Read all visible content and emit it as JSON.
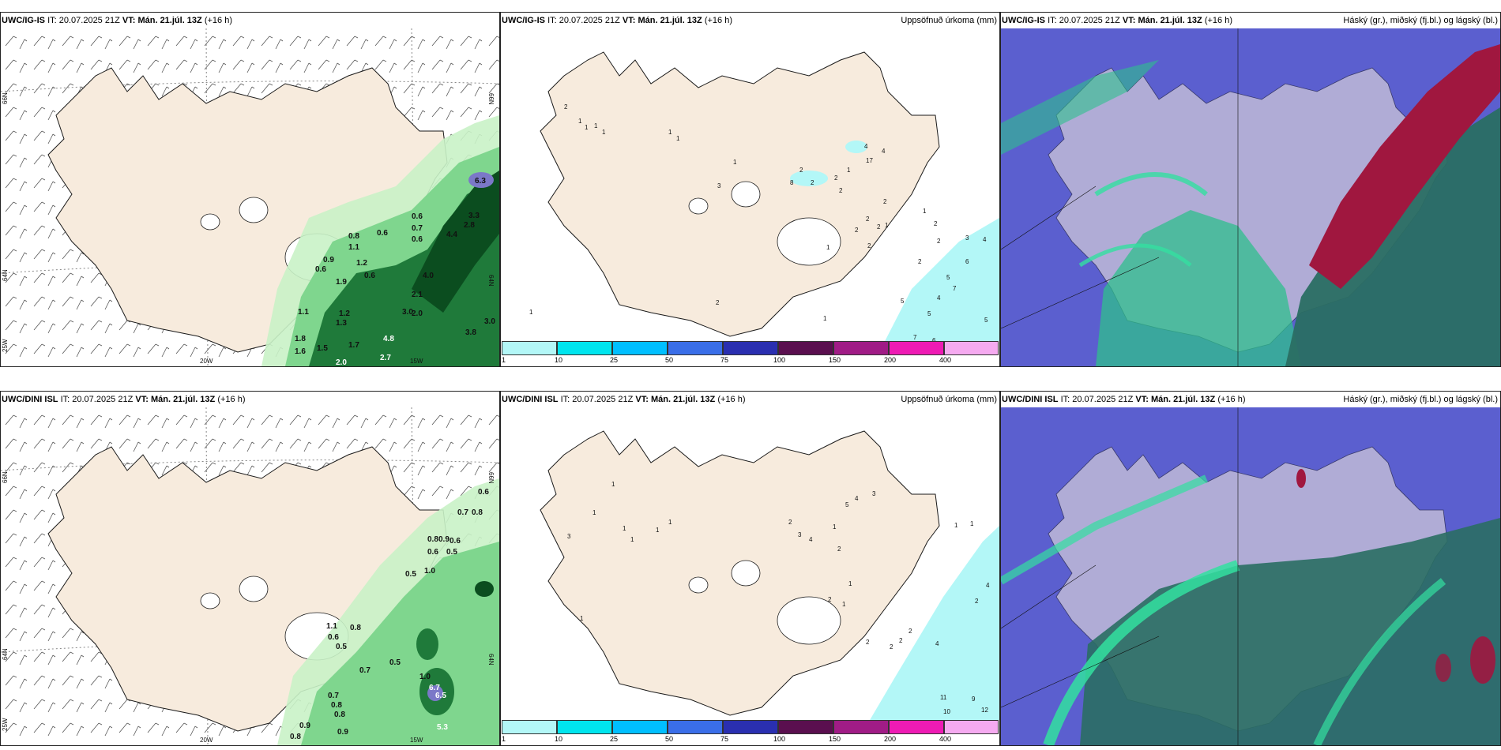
{
  "panels": [
    {
      "model": "UWC/IG-IS",
      "it_label": "IT:",
      "it_time": "20.07.2025 21Z",
      "vt_label": "VT:",
      "vt_time": "Mán. 21.júl. 13Z",
      "lead": "(+16 h)",
      "right_title": ""
    },
    {
      "model": "UWC/IG-IS",
      "it_label": "IT:",
      "it_time": "20.07.2025 21Z",
      "vt_label": "VT:",
      "vt_time": "Mán. 21.júl. 13Z",
      "lead": "(+16 h)",
      "right_title": "Uppsöfnuð úrkoma (mm)"
    },
    {
      "model": "UWC/IG-IS",
      "it_label": "IT:",
      "it_time": "20.07.2025 21Z",
      "vt_label": "VT:",
      "vt_time": "Mán. 21.júl. 13Z",
      "lead": "(+16 h)",
      "right_title": "Háský (gr.), miðský (fj.bl.) og lágský (bl.)"
    },
    {
      "model": "UWC/DINI ISL",
      "it_label": "IT:",
      "it_time": "20.07.2025 21Z",
      "vt_label": "VT:",
      "vt_time": "Mán. 21.júl. 13Z",
      "lead": "(+16 h)",
      "right_title": ""
    },
    {
      "model": "UWC/DINI ISL",
      "it_label": "IT:",
      "it_time": "20.07.2025 21Z",
      "vt_label": "VT:",
      "vt_time": "Mán. 21.júl. 13Z",
      "lead": "(+16 h)",
      "right_title": "Uppsöfnuð úrkoma (mm)"
    },
    {
      "model": "UWC/DINI ISL",
      "it_label": "IT:",
      "it_time": "20.07.2025 21Z",
      "vt_label": "VT:",
      "vt_time": "Mán. 21.júl. 13Z",
      "lead": "(+16 h)",
      "right_title": "Háský (gr.), miðský (fj.bl.) og lágský (bl.)"
    }
  ],
  "axis_labels": {
    "lat66": "66N",
    "lat64": "64N",
    "lon25": "25W",
    "lon20": "20W",
    "lon15": "15W"
  },
  "colorbar": {
    "ticks": [
      "1",
      "10",
      "25",
      "50",
      "75",
      "100",
      "150",
      "200",
      "400"
    ],
    "colors": [
      "#b3f7f7",
      "#00e5ee",
      "#00bfff",
      "#3a6ee8",
      "#2a2fb0",
      "#5a0f4f",
      "#a01c86",
      "#ee1bb4",
      "#f5aaf0"
    ]
  },
  "colors": {
    "land": "#f7ebdd",
    "coast": "#1a1a1a",
    "rain_light": "#c9f2c6",
    "rain_mid": "#7fd68e",
    "rain_heavy": "#1f7a3a",
    "rain_dark": "#0b4d1f",
    "precip_low": "#b3f7f7",
    "cloud_high": "#5b5fcf",
    "cloud_mid": "#2fbf8c",
    "cloud_low": "#a0173f"
  },
  "wind_precip_top": [
    "6.3",
    "3.3",
    "0.6",
    "0.7",
    "0.6",
    "2.8",
    "0.6",
    "4.4",
    "0.8",
    "1.1",
    "0.9",
    "0.6",
    "1.2",
    "0.6",
    "4.0",
    "2.1",
    "1.9",
    "3.0",
    "2.0",
    "1.2",
    "1.8",
    "1.6",
    "1.5",
    "1.7",
    "4.8",
    "2.7",
    "2.0",
    "3.8",
    "3.0",
    "1.3",
    "1.1"
  ],
  "wind_precip_bottom": [
    "0.6",
    "0.7",
    "0.8",
    "0.8",
    "0.9",
    "0.6",
    "0.6",
    "0.5",
    "1.0",
    "0.5",
    "1.1",
    "0.8",
    "0.6",
    "0.5",
    "0.7",
    "0.5",
    "6.7",
    "6.5",
    "5.3",
    "0.7",
    "0.8",
    "0.8",
    "0.9",
    "0.9",
    "0.8",
    "1.0"
  ],
  "accum_top": [
    "2",
    "1",
    "1",
    "1",
    "1",
    "1",
    "1",
    "4",
    "4",
    "17",
    "1",
    "2",
    "8",
    "2",
    "2",
    "1",
    "3",
    "2",
    "2",
    "2",
    "2",
    "2",
    "1",
    "2",
    "1",
    "1",
    "2",
    "2",
    "3",
    "4",
    "2",
    "6",
    "5",
    "7",
    "4",
    "5",
    "5",
    "5",
    "7",
    "6",
    "1",
    "2",
    "1"
  ],
  "accum_bottom": [
    "1",
    "1",
    "1",
    "1",
    "3",
    "1",
    "1",
    "2",
    "3",
    "4",
    "5",
    "4",
    "3",
    "1",
    "2",
    "1",
    "2",
    "1",
    "2",
    "2",
    "2",
    "2",
    "4",
    "4",
    "2",
    "11",
    "9",
    "10",
    "12",
    "1",
    "1",
    "1"
  ]
}
